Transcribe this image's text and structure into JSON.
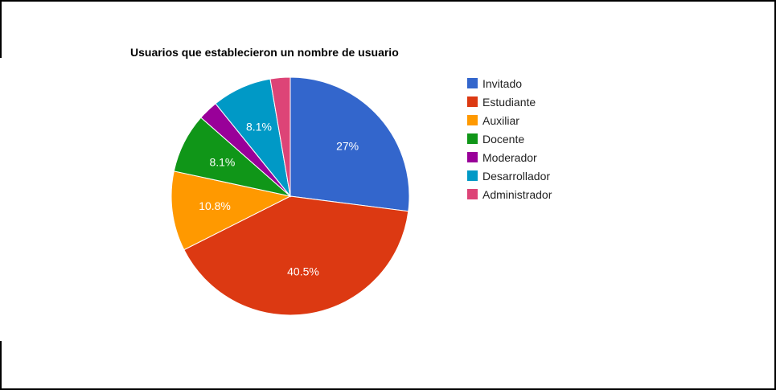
{
  "chart_data": {
    "type": "pie",
    "title": "Usuarios que establecieron un nombre de usuario",
    "start_angle_deg": 0,
    "direction": "clockwise",
    "legend_position": "right",
    "slices": [
      {
        "name": "Invitado",
        "value": 27.0,
        "label": "27%",
        "color": "#3366cc"
      },
      {
        "name": "Estudiante",
        "value": 40.5,
        "label": "40.5%",
        "color": "#dc3912"
      },
      {
        "name": "Auxiliar",
        "value": 10.8,
        "label": "10.8%",
        "color": "#ff9900"
      },
      {
        "name": "Docente",
        "value": 8.1,
        "label": "8.1%",
        "color": "#109618"
      },
      {
        "name": "Moderador",
        "value": 2.7,
        "label": "",
        "color": "#990099"
      },
      {
        "name": "Desarrollador",
        "value": 8.1,
        "label": "8.1%",
        "color": "#0099c6"
      },
      {
        "name": "Administrador",
        "value": 2.7,
        "label": "",
        "color": "#dd4477"
      }
    ]
  }
}
